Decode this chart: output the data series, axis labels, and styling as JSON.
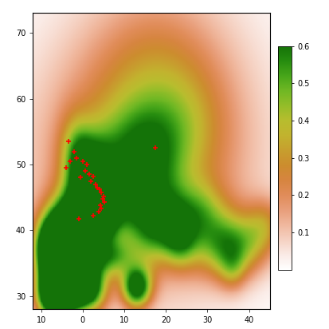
{
  "lon_min": -12,
  "lon_max": 45,
  "lat_min": 28,
  "lat_max": 73,
  "colorbar_ticks": [
    0.1,
    0.2,
    0.3,
    0.4,
    0.5,
    0.6
  ],
  "colorbar_labels": [
    "0.1",
    "0.2",
    "0.3",
    "0.4",
    "0.5",
    "0.6"
  ],
  "occurrence_points": [
    [
      -3.5,
      53.5
    ],
    [
      -2.0,
      52.0
    ],
    [
      -3.0,
      50.5
    ],
    [
      -1.5,
      51.0
    ],
    [
      0.5,
      49.0
    ],
    [
      1.5,
      48.5
    ],
    [
      2.5,
      48.2
    ],
    [
      2.0,
      47.5
    ],
    [
      3.0,
      47.0
    ],
    [
      3.5,
      46.5
    ],
    [
      4.0,
      46.2
    ],
    [
      4.5,
      45.8
    ],
    [
      5.0,
      45.2
    ],
    [
      4.8,
      44.8
    ],
    [
      5.2,
      44.3
    ],
    [
      4.3,
      43.8
    ],
    [
      4.5,
      43.3
    ],
    [
      3.8,
      42.8
    ],
    [
      2.5,
      42.2
    ],
    [
      -1.0,
      41.8
    ],
    [
      17.5,
      52.5
    ],
    [
      -4.0,
      49.5
    ],
    [
      0.0,
      50.5
    ],
    [
      1.0,
      50.0
    ],
    [
      -0.5,
      48.0
    ]
  ],
  "xticks": [
    -10,
    0,
    10,
    20,
    30,
    40
  ],
  "yticks": [
    30,
    40,
    50,
    60,
    70
  ],
  "figsize": [
    4.13,
    4.12
  ],
  "dpi": 100
}
